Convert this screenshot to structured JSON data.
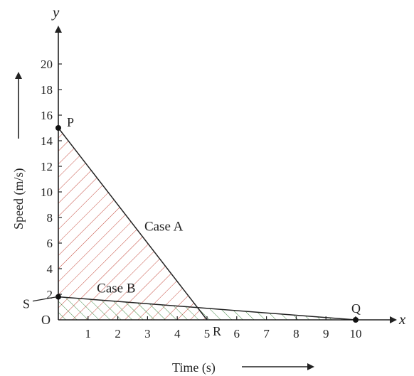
{
  "chart_data": {
    "type": "line",
    "x_axis_var": "x",
    "y_axis_var": "y",
    "xlabel": "Time (s)",
    "ylabel": "Speed (m/s)",
    "origin_label": "O",
    "xlim": [
      0,
      10
    ],
    "ylim": [
      0,
      20
    ],
    "x_ticks": [
      1,
      2,
      3,
      4,
      5,
      6,
      7,
      8,
      9,
      10
    ],
    "y_ticks": [
      2,
      4,
      6,
      8,
      10,
      12,
      14,
      16,
      18,
      20
    ],
    "grid": false,
    "series": [
      {
        "name": "Case A",
        "color": "#c0392b",
        "points": [
          {
            "label": "P",
            "x": 0,
            "y": 15
          },
          {
            "label": "R",
            "x": 5,
            "y": 0
          }
        ]
      },
      {
        "name": "Case B",
        "color": "#2e7d32",
        "points": [
          {
            "label": "S",
            "x": 0,
            "y": 1.8
          },
          {
            "label": "Q",
            "x": 10,
            "y": 0
          }
        ]
      }
    ]
  }
}
